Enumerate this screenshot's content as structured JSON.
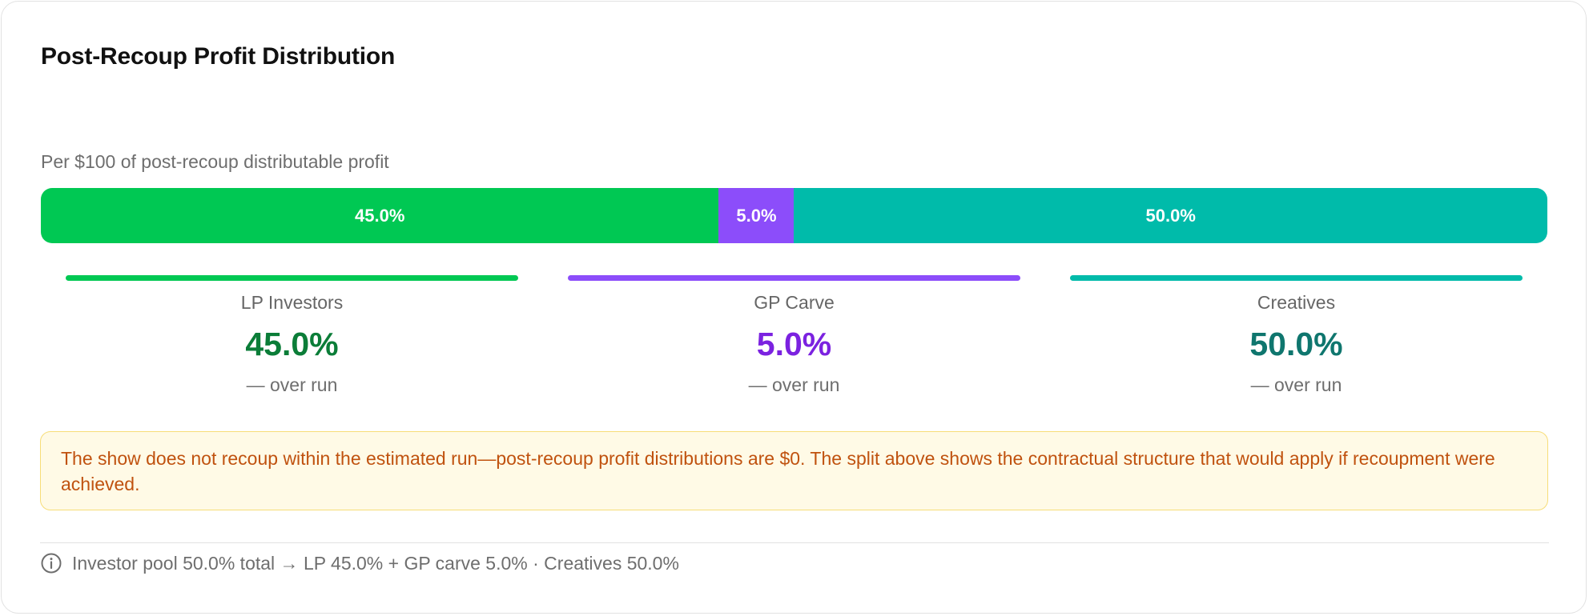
{
  "card": {
    "title": "Post-Recoup Profit Distribution",
    "subtitle": "Per $100 of post-recoup distributable profit"
  },
  "bar": {
    "segments": [
      {
        "name": "LP Investors",
        "label": "45.0%",
        "value": 45.0,
        "color": "#00c853"
      },
      {
        "name": "GP Carve",
        "label": "5.0%",
        "value": 5.0,
        "color": "#8c4dfa"
      },
      {
        "name": "Creatives",
        "label": "50.0%",
        "value": 50.0,
        "color": "#00bbaa"
      }
    ]
  },
  "breakdown": [
    {
      "label": "LP Investors",
      "value": "45.0%",
      "sub": "— over run",
      "line_color": "#00c853",
      "value_color": "#0b7d38"
    },
    {
      "label": "GP Carve",
      "value": "5.0%",
      "sub": "— over run",
      "line_color": "#8c4dfa",
      "value_color": "#7b22e0"
    },
    {
      "label": "Creatives",
      "value": "50.0%",
      "sub": "— over run",
      "line_color": "#00bbaa",
      "value_color": "#0f766e"
    }
  ],
  "warning": {
    "text": "The show does not recoup within the estimated run—post-recoup profit distributions are $0. The split above shows the contractual structure that would apply if recoupment were achieved."
  },
  "footer": {
    "icon": "info-icon",
    "text": "Investor pool 50.0% total → LP 45.0% + GP carve 5.0% · Creatives 50.0%"
  }
}
